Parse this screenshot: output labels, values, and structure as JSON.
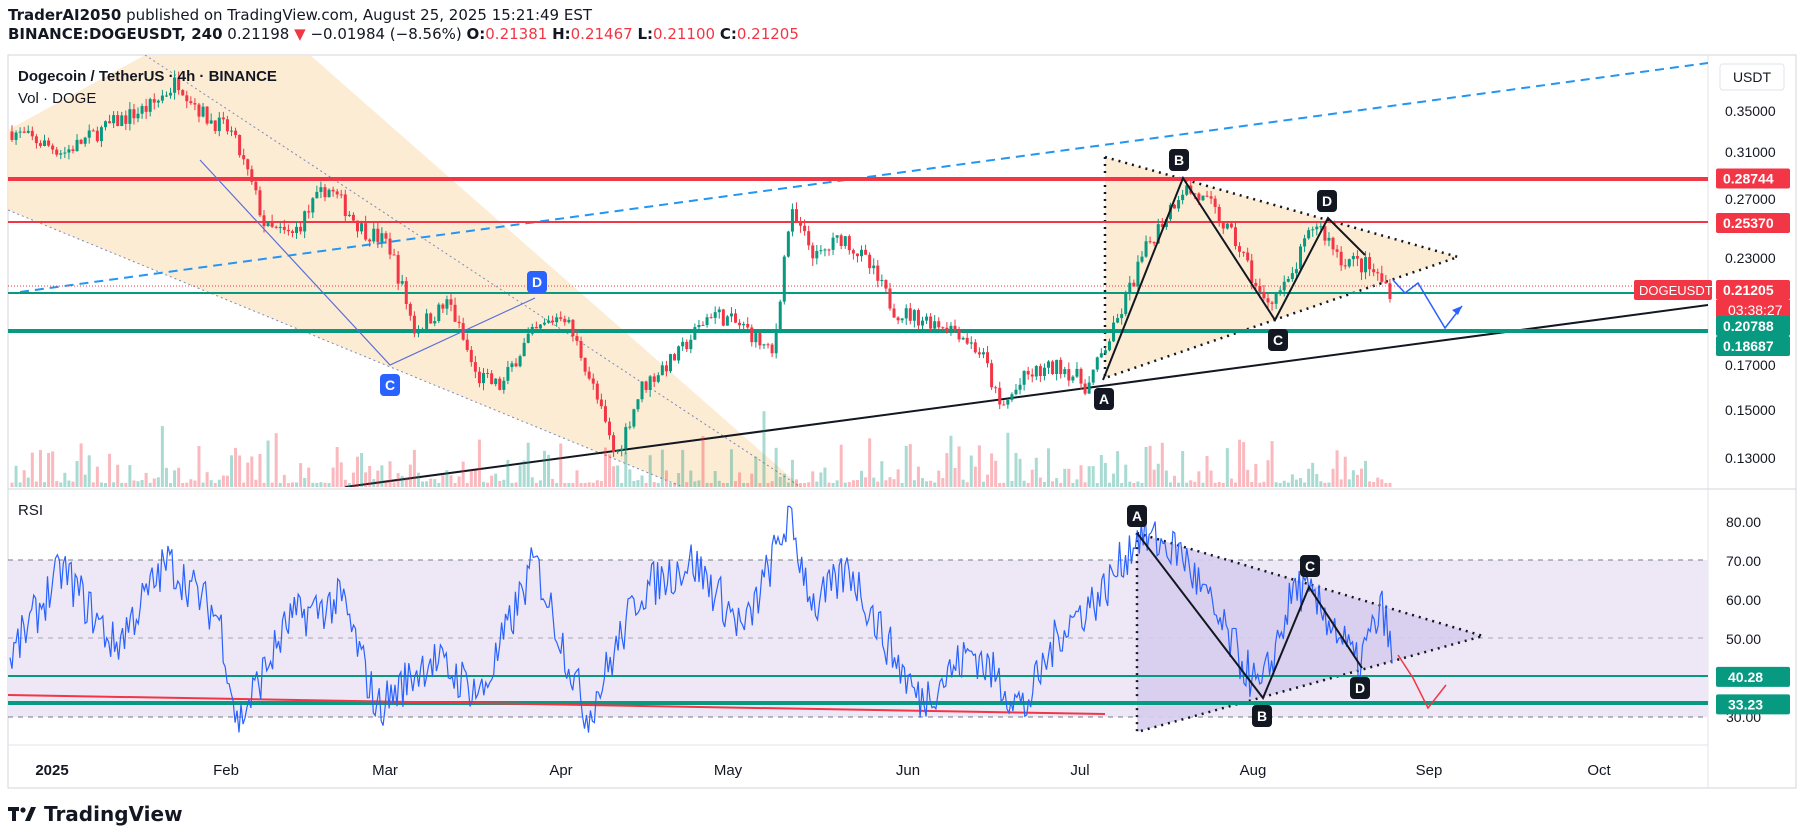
{
  "header": {
    "publisher": "TraderAI2050",
    "published_text": " published on TradingView.com, August 25, 2025 15:21:49 EST",
    "symbol": "BINANCE:DOGEUSDT, 240",
    "last": "0.21198",
    "change": "−0.01984 (−8.56%)",
    "o_label": "O:",
    "o_value": "0.21381",
    "h_label": "H:",
    "h_value": "0.21467",
    "l_label": "L:",
    "l_value": "0.21100",
    "c_label": "C:",
    "c_value": "0.21205"
  },
  "legend": {
    "title": "Dogecoin / TetherUS · 4h · BINANCE",
    "vol": "Vol · DOGE",
    "rsi": "RSI"
  },
  "footer": {
    "brand": "TradingView"
  },
  "colors": {
    "candle_up": "#089981",
    "candle_down": "#f23645",
    "resistance": "#f23645",
    "support": "#089981",
    "trend_dashed": "#2196f3",
    "rsi_line": "#2962ff",
    "channel_fill": "#fde9cc",
    "triangle_fill": "#fde9cc",
    "rsi_band": "#ede7f6"
  },
  "chart_data": [
    {
      "type": "candlestick",
      "title": "Dogecoin / TetherUS · 4h · BINANCE",
      "quote_currency": "USDT",
      "y_ticks": [
        "0.35000",
        "0.31000",
        "0.27000",
        "0.23000",
        "0.17000",
        "0.15000",
        "0.13000"
      ],
      "ylim": [
        0.115,
        0.385
      ],
      "x_ticks": [
        "2025",
        "Feb",
        "Mar",
        "Apr",
        "May",
        "Jun",
        "Jul",
        "Aug",
        "Sep",
        "Oct"
      ],
      "price_markers": [
        {
          "label": "0.28744",
          "value": 0.28744,
          "color": "#f23645"
        },
        {
          "label": "0.25370",
          "value": 0.2537,
          "color": "#f23645"
        },
        {
          "label": "0.21205",
          "value": 0.21205,
          "color": "#f23645",
          "symbol": "DOGEUSDT",
          "countdown": "03:38:27"
        },
        {
          "label": "0.20788",
          "value": 0.20788,
          "color": "#089981"
        },
        {
          "label": "0.18687",
          "value": 0.18687,
          "color": "#089981"
        }
      ],
      "price_path": [
        {
          "t": 0,
          "p": 0.33
        },
        {
          "t": 0.03,
          "p": 0.31
        },
        {
          "t": 0.06,
          "p": 0.34
        },
        {
          "t": 0.08,
          "p": 0.355
        },
        {
          "t": 0.095,
          "p": 0.38
        },
        {
          "t": 0.11,
          "p": 0.345
        },
        {
          "t": 0.125,
          "p": 0.33
        },
        {
          "t": 0.135,
          "p": 0.29
        },
        {
          "t": 0.145,
          "p": 0.25
        },
        {
          "t": 0.16,
          "p": 0.245
        },
        {
          "t": 0.18,
          "p": 0.28
        },
        {
          "t": 0.2,
          "p": 0.25
        },
        {
          "t": 0.215,
          "p": 0.24
        },
        {
          "t": 0.23,
          "p": 0.19
        },
        {
          "t": 0.25,
          "p": 0.205
        },
        {
          "t": 0.265,
          "p": 0.165
        },
        {
          "t": 0.28,
          "p": 0.16
        },
        {
          "t": 0.295,
          "p": 0.185
        },
        {
          "t": 0.315,
          "p": 0.2
        },
        {
          "t": 0.33,
          "p": 0.165
        },
        {
          "t": 0.345,
          "p": 0.13
        },
        {
          "t": 0.36,
          "p": 0.16
        },
        {
          "t": 0.38,
          "p": 0.175
        },
        {
          "t": 0.4,
          "p": 0.2
        },
        {
          "t": 0.42,
          "p": 0.19
        },
        {
          "t": 0.435,
          "p": 0.175
        },
        {
          "t": 0.445,
          "p": 0.26
        },
        {
          "t": 0.46,
          "p": 0.23
        },
        {
          "t": 0.475,
          "p": 0.245
        },
        {
          "t": 0.49,
          "p": 0.225
        },
        {
          "t": 0.505,
          "p": 0.2
        },
        {
          "t": 0.525,
          "p": 0.195
        },
        {
          "t": 0.54,
          "p": 0.19
        },
        {
          "t": 0.555,
          "p": 0.175
        },
        {
          "t": 0.565,
          "p": 0.15
        },
        {
          "t": 0.58,
          "p": 0.165
        },
        {
          "t": 0.6,
          "p": 0.17
        },
        {
          "t": 0.615,
          "p": 0.16
        },
        {
          "t": 0.63,
          "p": 0.19
        },
        {
          "t": 0.65,
          "p": 0.24
        },
        {
          "t": 0.67,
          "p": 0.28
        },
        {
          "t": 0.685,
          "p": 0.265
        },
        {
          "t": 0.7,
          "p": 0.24
        },
        {
          "t": 0.715,
          "p": 0.205
        },
        {
          "t": 0.73,
          "p": 0.215
        },
        {
          "t": 0.745,
          "p": 0.255
        },
        {
          "t": 0.76,
          "p": 0.23
        },
        {
          "t": 0.775,
          "p": 0.225
        },
        {
          "t": 0.79,
          "p": 0.21
        }
      ],
      "annotations": [
        "A",
        "B",
        "C",
        "D",
        "C",
        "D"
      ],
      "projection": "down then up"
    },
    {
      "type": "line",
      "title": "RSI",
      "y_ticks": [
        "80.00",
        "70.00",
        "60.00",
        "50.00",
        "30.00"
      ],
      "ylim": [
        24,
        86
      ],
      "band": [
        30,
        70
      ],
      "midline": 50,
      "levels": [
        {
          "label": "40.28",
          "value": 40.28,
          "color": "#089981"
        },
        {
          "label": "33.23",
          "value": 33.23,
          "color": "#089981"
        }
      ],
      "rsi_path": [
        {
          "t": 0,
          "v": 45
        },
        {
          "t": 0.03,
          "v": 68
        },
        {
          "t": 0.06,
          "v": 48
        },
        {
          "t": 0.09,
          "v": 70
        },
        {
          "t": 0.12,
          "v": 55
        },
        {
          "t": 0.13,
          "v": 28
        },
        {
          "t": 0.16,
          "v": 55
        },
        {
          "t": 0.19,
          "v": 60
        },
        {
          "t": 0.21,
          "v": 32
        },
        {
          "t": 0.24,
          "v": 45
        },
        {
          "t": 0.27,
          "v": 36
        },
        {
          "t": 0.3,
          "v": 70
        },
        {
          "t": 0.33,
          "v": 30
        },
        {
          "t": 0.36,
          "v": 62
        },
        {
          "t": 0.39,
          "v": 70
        },
        {
          "t": 0.42,
          "v": 52
        },
        {
          "t": 0.445,
          "v": 81
        },
        {
          "t": 0.46,
          "v": 58
        },
        {
          "t": 0.48,
          "v": 68
        },
        {
          "t": 0.5,
          "v": 50
        },
        {
          "t": 0.52,
          "v": 34
        },
        {
          "t": 0.55,
          "v": 47
        },
        {
          "t": 0.58,
          "v": 32
        },
        {
          "t": 0.6,
          "v": 52
        },
        {
          "t": 0.625,
          "v": 62
        },
        {
          "t": 0.645,
          "v": 77
        },
        {
          "t": 0.67,
          "v": 72
        },
        {
          "t": 0.69,
          "v": 55
        },
        {
          "t": 0.715,
          "v": 36
        },
        {
          "t": 0.735,
          "v": 64
        },
        {
          "t": 0.755,
          "v": 55
        },
        {
          "t": 0.77,
          "v": 43
        },
        {
          "t": 0.785,
          "v": 58
        },
        {
          "t": 0.79,
          "v": 45
        }
      ],
      "annotations": [
        "A",
        "B",
        "C",
        "D"
      ]
    }
  ]
}
